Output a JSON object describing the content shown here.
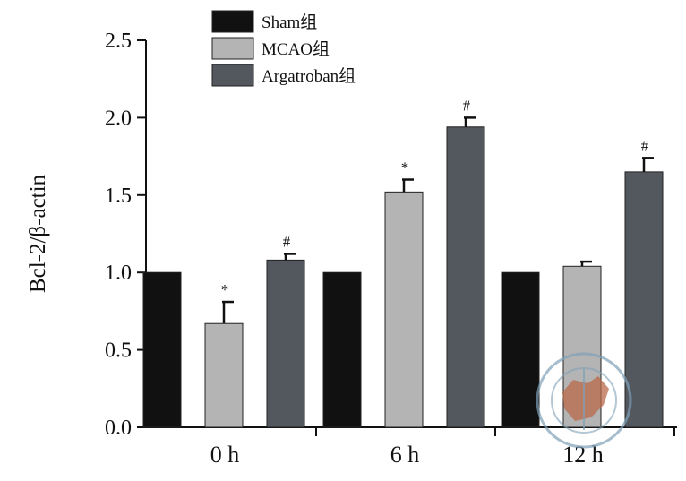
{
  "colors": {
    "Sham组": "#111111",
    "MCAO组": "#b4b4b4",
    "Argatroban组": "#53575e",
    "axis": "#111111",
    "watermark": "#7fa0b8",
    "watermark_fill": "#b86a48"
  },
  "chart_data": {
    "type": "bar",
    "title": "",
    "xlabel": "",
    "ylabel": "Bcl-2/β-actin",
    "ylim": [
      0,
      2.5
    ],
    "yticks": [
      "0.0",
      "0.5",
      "1.0",
      "1.5",
      "2.0",
      "2.5"
    ],
    "categories": [
      "0 h",
      "6 h",
      "12 h"
    ],
    "legend_position": "top-left",
    "grid": false,
    "series": [
      {
        "name": "Sham组",
        "values": [
          1.0,
          1.0,
          1.0
        ],
        "errors": [
          0,
          0,
          0
        ],
        "annotations": [
          "",
          "",
          ""
        ]
      },
      {
        "name": "MCAO组",
        "values": [
          0.67,
          1.52,
          1.04
        ],
        "errors": [
          0.14,
          0.08,
          0.03
        ],
        "annotations": [
          "*",
          "*",
          ""
        ]
      },
      {
        "name": "Argatroban组",
        "values": [
          1.08,
          1.94,
          1.65
        ],
        "errors": [
          0.04,
          0.06,
          0.09
        ],
        "annotations": [
          "#",
          "#",
          "#"
        ]
      }
    ]
  },
  "watermark": {
    "icon": "journal-seal-icon"
  }
}
